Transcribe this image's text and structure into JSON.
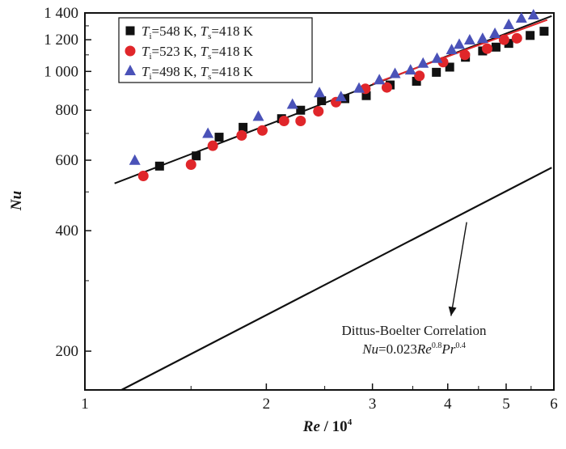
{
  "chart_data": {
    "type": "scatter",
    "title": "",
    "xlabel_main": "Re",
    "xlabel_rest": " / 10",
    "xlabel_exp": "4",
    "ylabel": "Nu",
    "x_scale": "log",
    "y_scale": "log",
    "xlim": [
      1,
      6
    ],
    "ylim": [
      160,
      1400
    ],
    "x_ticks": [
      1,
      2,
      3,
      4,
      5,
      6
    ],
    "x_tick_labels": [
      "1",
      "2",
      "3",
      "4",
      "5",
      "6"
    ],
    "y_ticks": [
      200,
      400,
      600,
      800,
      1000,
      1200,
      1400
    ],
    "y_tick_labels": [
      "200",
      "400",
      "600",
      "800",
      "1 000",
      "1 200",
      "1 400"
    ],
    "grid": false,
    "legend_position": "top-left",
    "series": [
      {
        "name": "T=548 K, T=418 K",
        "legend": {
          "a": "T",
          "a_sub": "i",
          "b": "=548 K, ",
          "c": "T",
          "c_sub": "s",
          "d": "=418 K"
        },
        "marker": "square",
        "color": "#111111",
        "x": [
          1.33,
          1.53,
          1.67,
          1.83,
          2.12,
          2.28,
          2.47,
          2.7,
          2.93,
          3.21,
          3.55,
          3.83,
          4.03,
          4.28,
          4.57,
          4.81,
          5.05,
          5.48,
          5.78
        ],
        "y": [
          580,
          615,
          685,
          725,
          762,
          800,
          845,
          855,
          870,
          925,
          945,
          995,
          1025,
          1085,
          1125,
          1150,
          1175,
          1230,
          1260
        ]
      },
      {
        "name": "T=523 K, T=418 K",
        "legend": {
          "a": "T",
          "a_sub": "i",
          "b": "=523 K, ",
          "c": "T",
          "c_sub": "s",
          "d": "=418 K"
        },
        "marker": "circle",
        "color": "#e0262a",
        "x": [
          1.25,
          1.5,
          1.63,
          1.82,
          1.97,
          2.14,
          2.28,
          2.44,
          2.61,
          2.92,
          3.17,
          3.59,
          3.93,
          4.27,
          4.65,
          4.96,
          5.21
        ],
        "y": [
          548,
          585,
          652,
          692,
          712,
          752,
          752,
          795,
          838,
          905,
          912,
          975,
          1055,
          1100,
          1140,
          1200,
          1210
        ]
      },
      {
        "name": "T=498 K, T=418 K",
        "legend": {
          "a": "T",
          "a_sub": "i",
          "b": "=498 K, ",
          "c": "T",
          "c_sub": "s",
          "d": "=418 K"
        },
        "marker": "triangle",
        "color": "#4a52b8",
        "x": [
          1.21,
          1.6,
          1.94,
          2.21,
          2.45,
          2.66,
          2.85,
          3.08,
          3.27,
          3.47,
          3.64,
          3.84,
          4.06,
          4.18,
          4.35,
          4.57,
          4.79,
          5.05,
          5.3,
          5.55
        ],
        "y": [
          598,
          698,
          770,
          825,
          882,
          862,
          905,
          950,
          985,
          1005,
          1045,
          1075,
          1130,
          1165,
          1195,
          1205,
          1240,
          1305,
          1355,
          1380
        ]
      }
    ],
    "lines": [
      {
        "name": "fit-black",
        "x": [
          1.12,
          5.95
        ],
        "y": [
          525,
          1375
        ],
        "color": "#111111",
        "width": 2
      },
      {
        "name": "fit-red",
        "x": [
          3.0,
          5.85
        ],
        "y": [
          930,
          1345
        ],
        "color": "#e0262a",
        "width": 2
      },
      {
        "name": "dittus-boelter",
        "x": [
          1.15,
          5.95
        ],
        "y": [
          160,
          575
        ],
        "color": "#111111",
        "width": 2.2
      }
    ],
    "annotation": {
      "line1": "Dittus-Boelter Correlation",
      "line2": {
        "a": "Nu",
        "b": "=0.023",
        "c": "Re",
        "c_exp": "0.8",
        "d": "Pr",
        "d_exp": "0.4"
      },
      "arrow_from": {
        "x": 4.3,
        "y": 420
      },
      "arrow_to": {
        "x": 4.05,
        "y": 245
      }
    }
  }
}
